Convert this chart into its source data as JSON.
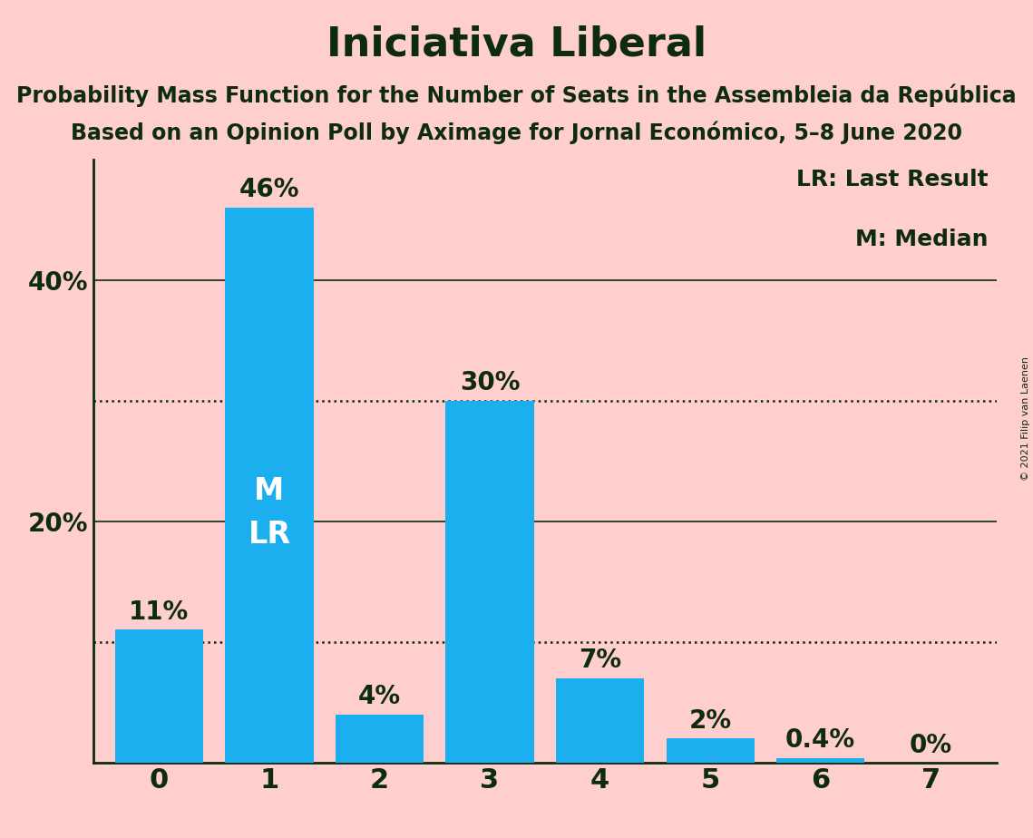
{
  "title": "Iniciativa Liberal",
  "subtitle1": "Probability Mass Function for the Number of Seats in the Assembleia da República",
  "subtitle2": "Based on an Opinion Poll by Aximage for Jornal Económico, 5–8 June 2020",
  "copyright": "© 2021 Filip van Laenen",
  "categories": [
    0,
    1,
    2,
    3,
    4,
    5,
    6,
    7
  ],
  "values": [
    11,
    46,
    4,
    30,
    7,
    2,
    0.4,
    0
  ],
  "value_labels": [
    "11%",
    "46%",
    "4%",
    "30%",
    "7%",
    "2%",
    "0.4%",
    "0%"
  ],
  "bar_color": "#1BAFF0",
  "bg_color": "#FFCECE",
  "text_color": "#0D2B0D",
  "dotted_lines": [
    10,
    30
  ],
  "solid_lines": [
    20,
    40
  ],
  "yticks": [
    0,
    20,
    40
  ],
  "ylim": [
    0,
    50
  ],
  "legend_text": [
    "LR: Last Result",
    "M: Median"
  ],
  "bar_annotations": [
    {
      "bar": 1,
      "lines": [
        "M",
        "LR"
      ]
    }
  ],
  "title_fontsize": 32,
  "subtitle_fontsize": 17,
  "label_fontsize": 20,
  "tick_fontsize": 20,
  "legend_fontsize": 18,
  "annotation_fontsize": 24,
  "copyright_fontsize": 8
}
